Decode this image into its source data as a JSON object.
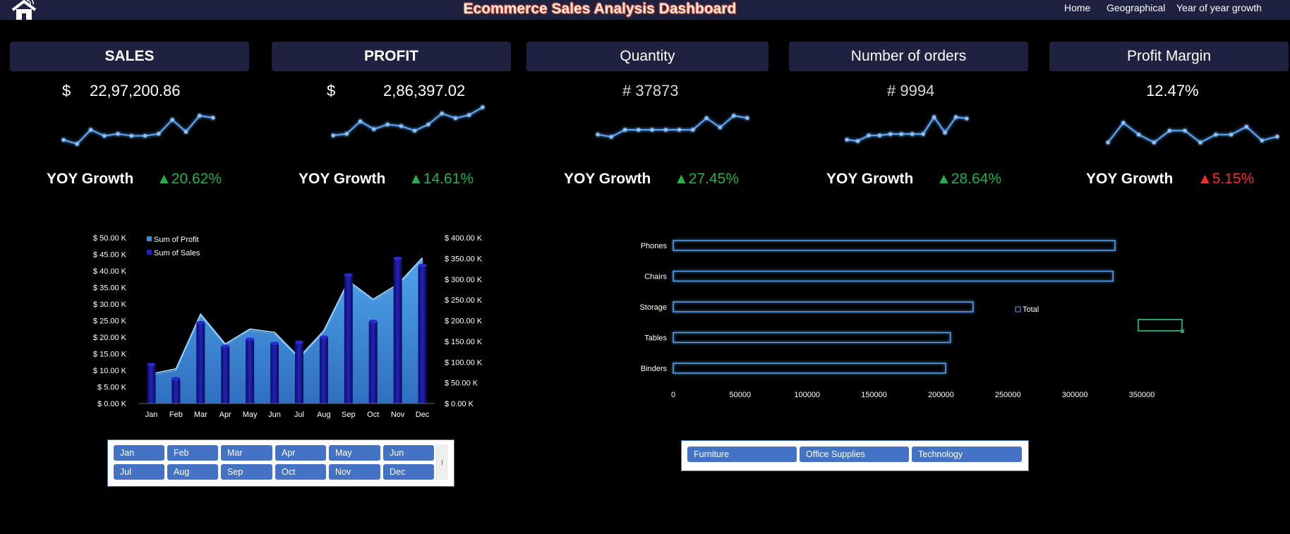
{
  "header": {
    "title": "Ecommerce Sales Analysis Dashboard",
    "nav": [
      "Home",
      "Geographical",
      "Year of year growth"
    ]
  },
  "cards": [
    {
      "title": "SALES",
      "prefix": "$",
      "value": "22,97,200.86",
      "yoy_label": "YOY Growth",
      "growth": "20.62%",
      "trend": "up",
      "spark": [
        2,
        0,
        7,
        4,
        5,
        4,
        4,
        5,
        12,
        6,
        14,
        13
      ]
    },
    {
      "title": "PROFIT",
      "prefix": "$",
      "value": "2,86,397.02",
      "yoy_label": "YOY Growth",
      "growth": "14.61%",
      "trend": "up",
      "spark": [
        1,
        2,
        10,
        5,
        8,
        7,
        4,
        8,
        15,
        12,
        14,
        19
      ]
    },
    {
      "title": "Quantity",
      "prefix": "",
      "value": "# 37873",
      "yoy_label": "YOY Growth",
      "growth": "27.45%",
      "trend": "up",
      "spark": [
        2,
        1,
        4,
        4,
        4,
        4,
        4,
        4,
        9,
        5,
        10,
        9
      ]
    },
    {
      "title": "Number of orders",
      "prefix": "",
      "value": "# 9994",
      "yoy_label": "YOY Growth",
      "growth": "28.64%",
      "trend": "up",
      "spark": [
        1,
        0,
        4,
        4,
        5,
        5,
        5,
        5,
        17,
        6,
        17,
        16
      ]
    },
    {
      "title": "Profit Margin",
      "prefix": "",
      "value": "12.47%",
      "yoy_label": "YOY Growth",
      "growth": "5.15%",
      "trend": "up-warning",
      "spark": [
        1,
        11,
        5,
        1,
        7,
        7,
        1,
        5,
        5,
        9,
        2,
        4
      ]
    }
  ],
  "chart_data": [
    {
      "type": "bar",
      "categories": [
        "Jan",
        "Feb",
        "Mar",
        "Apr",
        "May",
        "Jun",
        "Jul",
        "Aug",
        "Sep",
        "Oct",
        "Nov",
        "Dec"
      ],
      "series": [
        {
          "name": "Sum of Profit",
          "render": "area",
          "axis": "left",
          "values": [
            8500,
            10000,
            26500,
            17500,
            22000,
            21000,
            13500,
            21500,
            36500,
            31000,
            35500,
            43500
          ]
        },
        {
          "name": "Sum of Sales",
          "render": "bar",
          "axis": "right",
          "values": [
            94000,
            60000,
            195000,
            138000,
            155000,
            145000,
            148000,
            160000,
            310000,
            198000,
            350000,
            333000
          ]
        }
      ],
      "left_axis": {
        "ylim": [
          0,
          50000
        ],
        "ticks": [
          "$ 0.00 K",
          "$ 5.00 K",
          "$ 10.00 K",
          "$ 15.00 K",
          "$ 20.00 K",
          "$ 25.00 K",
          "$ 30.00 K",
          "$ 35.00 K",
          "$ 40.00 K",
          "$ 45.00 K",
          "$ 50.00 K"
        ]
      },
      "right_axis": {
        "ylim": [
          0,
          400000
        ],
        "ticks": [
          "$ 0.00 K",
          "$ 50.00 K",
          "$ 100.00 K",
          "$ 150.00 K",
          "$ 200.00 K",
          "$ 250.00 K",
          "$ 300.00 K",
          "$ 350.00 K",
          "$ 400.00 K"
        ]
      },
      "legend": "top-left",
      "grid": false,
      "colors": {
        "area": "#3d8fd8",
        "bar": "#13138a"
      }
    },
    {
      "type": "bar",
      "orientation": "horizontal",
      "categories": [
        "Phones",
        "Chairs",
        "Storage",
        "Tables",
        "Binders"
      ],
      "series": [
        {
          "name": "Total",
          "values": [
            330000,
            328500,
            224000,
            207000,
            203500
          ]
        }
      ],
      "xlim": [
        0,
        350000
      ],
      "xticks": [
        "0",
        "50000",
        "100000",
        "150000",
        "200000",
        "250000",
        "300000",
        "350000"
      ],
      "legend": "right",
      "grid": false,
      "colors": {
        "outline": "#5aa2f0"
      }
    }
  ],
  "month_slicer": {
    "items": [
      "Jan",
      "Feb",
      "Mar",
      "Apr",
      "May",
      "Jun",
      "Jul",
      "Aug",
      "Sep",
      "Oct",
      "Nov",
      "Dec"
    ]
  },
  "category_slicer": {
    "items": [
      "Furniture",
      "Office Supplies",
      "Technology"
    ]
  },
  "colors": {
    "accent": "#4472c4",
    "header_bg": "#1e2140",
    "positive": "#21b24a",
    "warning": "#ff2a2a"
  }
}
